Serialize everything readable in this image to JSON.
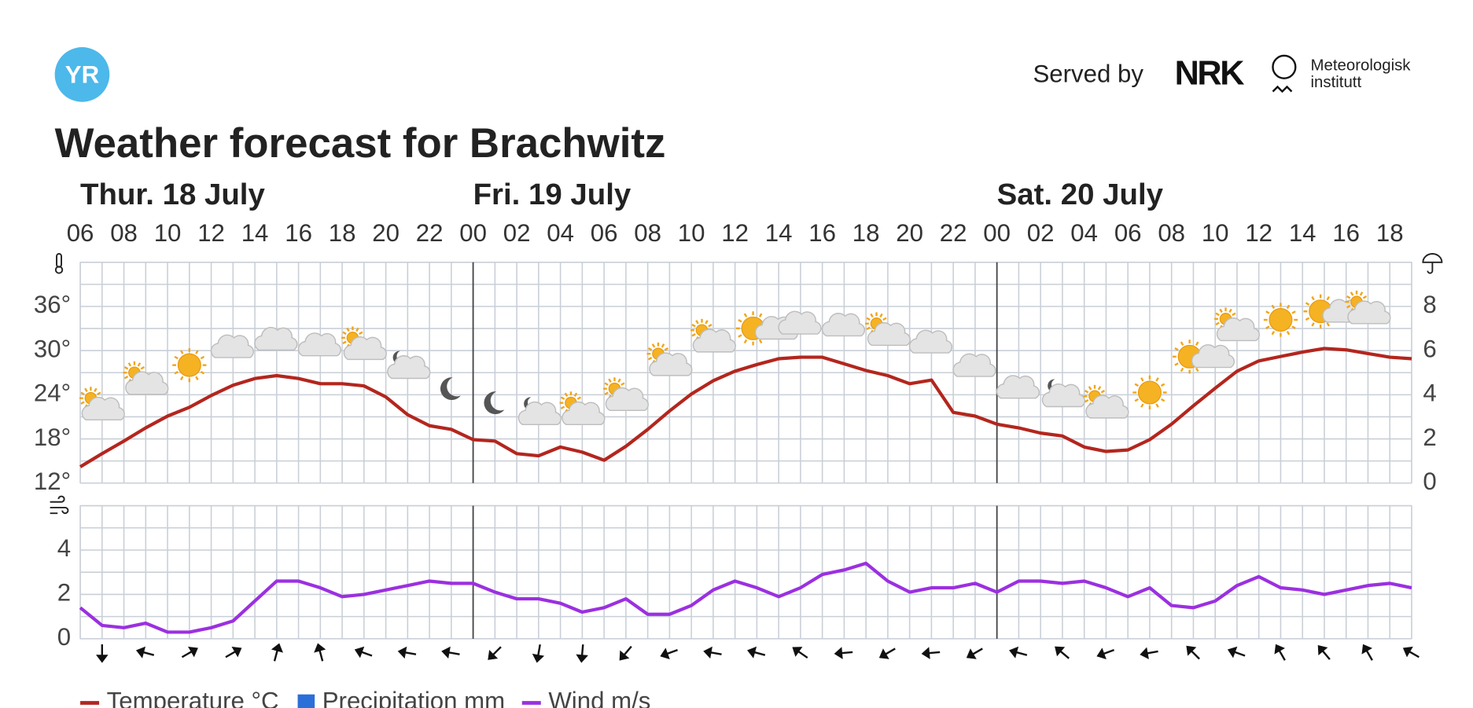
{
  "header": {
    "logo": "YR",
    "served_by": "Served by",
    "partners": [
      "NRK",
      "Meteorologisk",
      "institutt"
    ]
  },
  "chart_data": [
    {
      "type": "line",
      "title": "Weather forecast for Brachwitz",
      "day_labels": [
        {
          "text": "Thur. 18 July",
          "at": 0
        },
        {
          "text": "Fri. 19 July",
          "at": 18
        },
        {
          "text": "Sat. 20 July",
          "at": 42
        }
      ],
      "categories": [
        "06",
        null,
        "08",
        null,
        "10",
        null,
        "12",
        null,
        "14",
        null,
        "16",
        null,
        "18",
        null,
        "20",
        null,
        "22",
        null,
        "00",
        null,
        "02",
        null,
        "04",
        null,
        "06",
        null,
        "08",
        null,
        "10",
        null,
        "12",
        null,
        "14",
        null,
        "16",
        null,
        "18",
        null,
        "20",
        null,
        "22",
        null,
        "00",
        null,
        "02",
        null,
        "04",
        null,
        "06",
        null,
        "08",
        null,
        "10",
        null,
        "12",
        null,
        "14",
        null,
        "16",
        null,
        "18",
        null
      ],
      "series": [
        {
          "name": "Temperature °C",
          "color": "#b3261e",
          "values": [
            14.2,
            16.0,
            17.7,
            19.5,
            21.1,
            22.3,
            23.9,
            25.3,
            26.2,
            26.6,
            26.2,
            25.5,
            25.5,
            25.2,
            23.7,
            21.3,
            19.8,
            19.3,
            17.9,
            17.7,
            16.0,
            15.7,
            16.9,
            16.2,
            15.1,
            17.0,
            19.3,
            21.8,
            24.1,
            25.9,
            27.2,
            28.1,
            28.9,
            29.1,
            29.1,
            28.2,
            27.3,
            26.6,
            25.5,
            26.0,
            21.6,
            21.1,
            20.0,
            19.5,
            18.8,
            18.4,
            16.9,
            16.3,
            16.5,
            17.9,
            20.0,
            22.5,
            24.9,
            27.2,
            28.6,
            29.2,
            29.8,
            30.3,
            30.1,
            29.6,
            29.1,
            28.9
          ]
        },
        {
          "name": "Precipitation mm",
          "color": "#2b6fd8",
          "axis": "y2",
          "values": [
            0,
            0,
            0,
            0,
            0,
            0,
            0,
            0,
            0,
            0,
            0,
            0,
            0,
            0,
            0,
            0,
            0,
            0,
            0,
            0,
            0,
            0,
            0,
            0,
            0,
            0,
            0,
            0,
            0,
            0,
            0,
            0,
            0,
            0,
            0,
            0,
            0,
            0,
            0,
            0,
            0,
            0,
            0,
            0,
            0,
            0,
            0,
            0,
            0,
            0,
            0,
            0,
            0,
            0,
            0,
            0,
            0,
            0,
            0,
            0,
            0,
            0
          ]
        }
      ],
      "ylim": [
        12,
        42
      ],
      "yticks": [
        {
          "value": 12,
          "label": "12°"
        },
        {
          "value": 18,
          "label": "18°"
        },
        {
          "value": 24,
          "label": "24°"
        },
        {
          "value": 30,
          "label": "30°"
        },
        {
          "value": 36,
          "label": "36°"
        }
      ],
      "y2lim": [
        0,
        10
      ],
      "y2ticks": [
        0,
        2,
        4,
        6,
        8
      ],
      "grid": true
    },
    {
      "type": "line",
      "series": [
        {
          "name": "Wind m/s",
          "color": "#9b30e0",
          "values": [
            1.4,
            0.6,
            0.5,
            0.7,
            0.3,
            0.3,
            0.5,
            0.8,
            1.7,
            2.6,
            2.6,
            2.3,
            1.9,
            2.0,
            2.2,
            2.4,
            2.6,
            2.5,
            2.5,
            2.1,
            1.8,
            1.8,
            1.6,
            1.2,
            1.4,
            1.8,
            1.1,
            1.1,
            1.5,
            2.2,
            2.6,
            2.3,
            1.9,
            2.3,
            2.9,
            3.1,
            3.4,
            2.6,
            2.1,
            2.3,
            2.3,
            2.5,
            2.1,
            2.6,
            2.6,
            2.5,
            2.6,
            2.3,
            1.9,
            2.3,
            1.5,
            1.4,
            1.7,
            2.4,
            2.8,
            2.3,
            2.2,
            2.0,
            2.2,
            2.4,
            2.5,
            2.3
          ]
        }
      ],
      "ylim": [
        0,
        6
      ],
      "yticks": [
        0,
        2,
        4
      ],
      "grid": true
    }
  ]
}
